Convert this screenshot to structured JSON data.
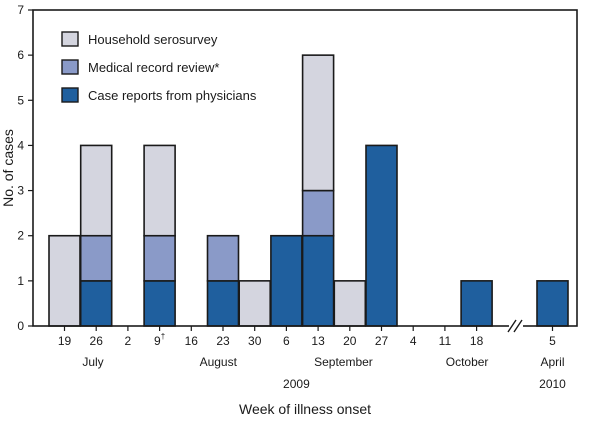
{
  "chart_data": {
    "type": "bar",
    "stacked": true,
    "xlabel": "Week of illness onset",
    "ylabel": "No. of cases",
    "ylim": [
      0,
      7
    ],
    "yticks": [
      0,
      1,
      2,
      3,
      4,
      5,
      6,
      7
    ],
    "categories": [
      "19",
      "26",
      "2",
      "9",
      "16",
      "23",
      "30",
      "6",
      "13",
      "20",
      "27",
      "4",
      "11",
      "18",
      "5"
    ],
    "superscripts": {
      "3": "†"
    },
    "series": [
      {
        "name": "Case reports from physicians",
        "color": "#1f5f9e",
        "values": [
          0,
          1,
          0,
          1,
          0,
          1,
          0,
          2,
          2,
          0,
          4,
          0,
          0,
          1,
          1
        ]
      },
      {
        "name": "Medical record review*",
        "color": "#8a9ac8",
        "values": [
          0,
          1,
          0,
          1,
          0,
          1,
          0,
          0,
          1,
          0,
          0,
          0,
          0,
          0,
          0
        ]
      },
      {
        "name": "Household serosurvey",
        "color": "#d4d5df",
        "values": [
          2,
          2,
          0,
          2,
          0,
          0,
          1,
          0,
          3,
          1,
          0,
          0,
          0,
          0,
          0
        ]
      }
    ],
    "legend_order": [
      2,
      1,
      0
    ],
    "legend_position": "top-left",
    "month_labels": [
      {
        "label": "July",
        "center_index": 0.9
      },
      {
        "label": "August",
        "center_index": 4.85
      },
      {
        "label": "September",
        "center_index": 8.8
      },
      {
        "label": "October",
        "center_index": 12.7
      },
      {
        "label": "April",
        "center_index": 14.0
      }
    ],
    "year_labels": [
      {
        "label": "2009",
        "center_index": 7.0
      },
      {
        "label": "2010",
        "center_index": 14.0
      }
    ],
    "axis_break_after_index": 13
  }
}
